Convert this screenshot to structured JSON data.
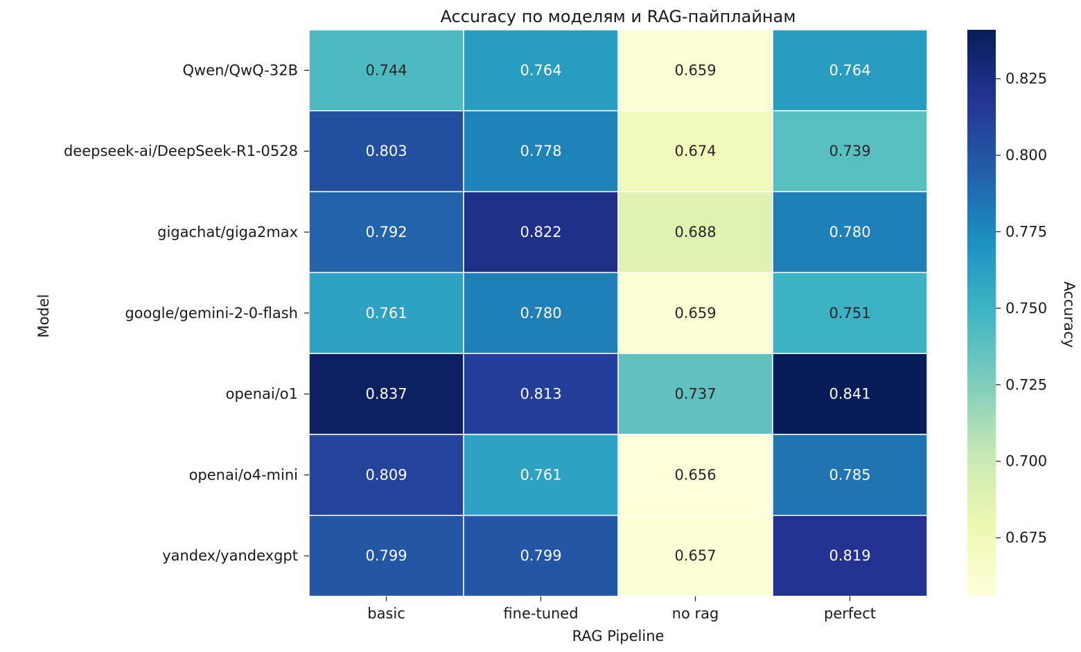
{
  "chart_data": {
    "type": "heatmap",
    "title": "Accuracy по моделям и RAG-пайплайнам",
    "xlabel": "RAG Pipeline",
    "ylabel": "Model",
    "x_categories": [
      "basic",
      "fine-tuned",
      "no rag",
      "perfect"
    ],
    "y_categories": [
      "Qwen/QwQ-32B",
      "deepseek-ai/DeepSeek-R1-0528",
      "gigachat/giga2max",
      "google/gemini-2-0-flash",
      "openai/o1",
      "openai/o4-mini",
      "yandex/yandexgpt"
    ],
    "values": [
      [
        0.744,
        0.764,
        0.659,
        0.764
      ],
      [
        0.803,
        0.778,
        0.674,
        0.739
      ],
      [
        0.792,
        0.822,
        0.688,
        0.78
      ],
      [
        0.761,
        0.78,
        0.659,
        0.751
      ],
      [
        0.837,
        0.813,
        0.737,
        0.841
      ],
      [
        0.809,
        0.761,
        0.656,
        0.785
      ],
      [
        0.799,
        0.799,
        0.657,
        0.819
      ]
    ],
    "value_labels": [
      [
        "0.744",
        "0.764",
        "0.659",
        "0.764"
      ],
      [
        "0.803",
        "0.778",
        "0.674",
        "0.739"
      ],
      [
        "0.792",
        "0.822",
        "0.688",
        "0.780"
      ],
      [
        "0.761",
        "0.780",
        "0.659",
        "0.751"
      ],
      [
        "0.837",
        "0.813",
        "0.737",
        "0.841"
      ],
      [
        "0.809",
        "0.761",
        "0.656",
        "0.785"
      ],
      [
        "0.799",
        "0.799",
        "0.657",
        "0.819"
      ]
    ],
    "colorbar": {
      "label": "Accuracy",
      "range": [
        0.656,
        0.841
      ],
      "ticks": [
        0.675,
        0.7,
        0.725,
        0.75,
        0.775,
        0.8,
        0.825
      ],
      "tick_labels": [
        "0.675",
        "0.700",
        "0.725",
        "0.750",
        "0.775",
        "0.800",
        "0.825"
      ],
      "colormap": "YlGnBu",
      "stops": [
        "#ffffd9",
        "#edf8b1",
        "#c7e9b4",
        "#7fcdbb",
        "#41b6c4",
        "#1d91c0",
        "#225ea8",
        "#253494",
        "#081d58"
      ]
    }
  }
}
